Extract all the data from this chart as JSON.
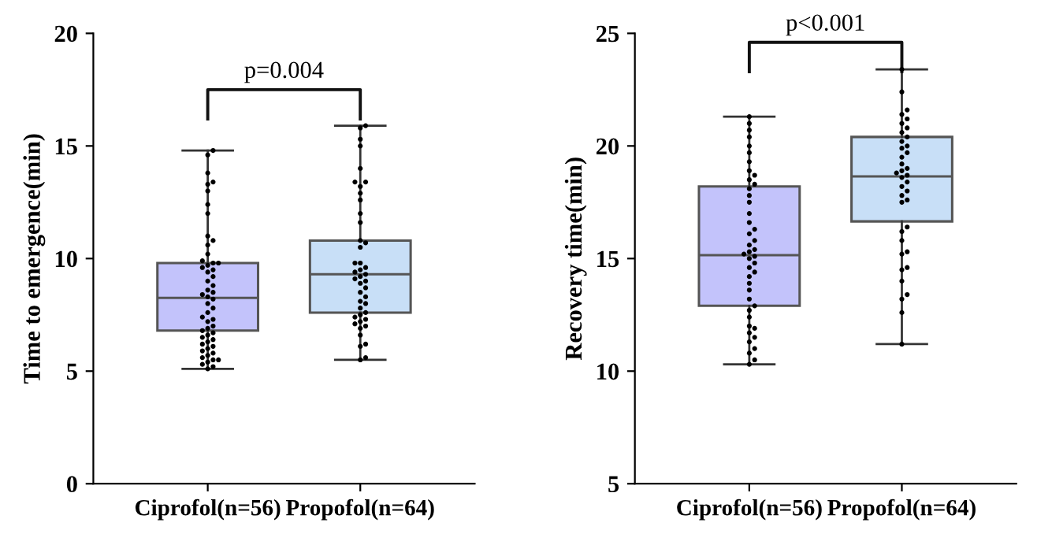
{
  "chart_data": [
    {
      "type": "box",
      "ylabel": "Time to emergence(min)",
      "categories": [
        "Ciprofol(n=56)",
        "Propofol(n=64)"
      ],
      "colors": [
        "#c3c3fb",
        "#c8dff7"
      ],
      "ylim": [
        0,
        20
      ],
      "yticks": [
        0,
        5,
        10,
        15,
        20
      ],
      "grid": false,
      "annotations": [
        "p=0.004"
      ],
      "boxes": [
        {
          "low": 5.1,
          "q1": 6.8,
          "median": 8.25,
          "q3": 9.8,
          "high": 14.8
        },
        {
          "low": 5.5,
          "q1": 7.6,
          "median": 9.3,
          "q3": 10.8,
          "high": 15.9
        }
      ],
      "series": [
        {
          "type": "scatter",
          "color": "#000000",
          "marker": "circle",
          "x": [
            "Ciprofol(n=56)",
            "Ciprofol(n=56)",
            "Ciprofol(n=56)",
            "Ciprofol(n=56)",
            "Ciprofol(n=56)",
            "Ciprofol(n=56)",
            "Ciprofol(n=56)",
            "Ciprofol(n=56)",
            "Ciprofol(n=56)",
            "Ciprofol(n=56)",
            "Ciprofol(n=56)",
            "Ciprofol(n=56)",
            "Ciprofol(n=56)",
            "Ciprofol(n=56)",
            "Ciprofol(n=56)",
            "Ciprofol(n=56)",
            "Ciprofol(n=56)",
            "Ciprofol(n=56)",
            "Ciprofol(n=56)",
            "Ciprofol(n=56)",
            "Ciprofol(n=56)",
            "Ciprofol(n=56)",
            "Ciprofol(n=56)",
            "Ciprofol(n=56)",
            "Ciprofol(n=56)",
            "Ciprofol(n=56)",
            "Ciprofol(n=56)",
            "Ciprofol(n=56)",
            "Ciprofol(n=56)",
            "Ciprofol(n=56)",
            "Ciprofol(n=56)",
            "Ciprofol(n=56)",
            "Ciprofol(n=56)",
            "Ciprofol(n=56)",
            "Ciprofol(n=56)",
            "Ciprofol(n=56)",
            "Ciprofol(n=56)",
            "Ciprofol(n=56)",
            "Ciprofol(n=56)",
            "Ciprofol(n=56)",
            "Ciprofol(n=56)",
            "Ciprofol(n=56)",
            "Ciprofol(n=56)",
            "Ciprofol(n=56)",
            "Ciprofol(n=56)",
            "Ciprofol(n=56)",
            "Ciprofol(n=56)",
            "Ciprofol(n=56)",
            "Ciprofol(n=56)",
            "Ciprofol(n=56)",
            "Ciprofol(n=56)",
            "Ciprofol(n=56)",
            "Ciprofol(n=56)",
            "Ciprofol(n=56)"
          ],
          "values": [
            5.1,
            5.2,
            5.3,
            5.4,
            5.5,
            5.5,
            5.6,
            5.7,
            5.8,
            5.9,
            6.0,
            6.1,
            6.2,
            6.3,
            6.4,
            6.5,
            6.6,
            6.7,
            6.8,
            6.9,
            7.0,
            7.2,
            7.3,
            7.4,
            7.6,
            7.8,
            8.0,
            8.2,
            8.3,
            8.4,
            8.5,
            8.6,
            8.8,
            9.0,
            9.2,
            9.4,
            9.5,
            9.6,
            9.7,
            9.8,
            9.8,
            9.9,
            10.2,
            10.6,
            10.8,
            11.0,
            12.0,
            12.4,
            13.0,
            13.3,
            13.4,
            13.8,
            14.6,
            14.8
          ]
        },
        {
          "type": "scatter",
          "color": "#000000",
          "marker": "circle",
          "x": [
            "Propofol(n=64)",
            "Propofol(n=64)",
            "Propofol(n=64)",
            "Propofol(n=64)",
            "Propofol(n=64)",
            "Propofol(n=64)",
            "Propofol(n=64)",
            "Propofol(n=64)",
            "Propofol(n=64)",
            "Propofol(n=64)",
            "Propofol(n=64)",
            "Propofol(n=64)",
            "Propofol(n=64)",
            "Propofol(n=64)",
            "Propofol(n=64)",
            "Propofol(n=64)",
            "Propofol(n=64)",
            "Propofol(n=64)",
            "Propofol(n=64)",
            "Propofol(n=64)",
            "Propofol(n=64)",
            "Propofol(n=64)",
            "Propofol(n=64)",
            "Propofol(n=64)",
            "Propofol(n=64)",
            "Propofol(n=64)",
            "Propofol(n=64)",
            "Propofol(n=64)",
            "Propofol(n=64)",
            "Propofol(n=64)",
            "Propofol(n=64)",
            "Propofol(n=64)",
            "Propofol(n=64)",
            "Propofol(n=64)",
            "Propofol(n=64)",
            "Propofol(n=64)",
            "Propofol(n=64)",
            "Propofol(n=64)",
            "Propofol(n=64)",
            "Propofol(n=64)",
            "Propofol(n=64)",
            "Propofol(n=64)",
            "Propofol(n=64)",
            "Propofol(n=64)"
          ],
          "values": [
            5.5,
            5.6,
            6.1,
            6.2,
            6.6,
            6.9,
            7.0,
            7.1,
            7.2,
            7.3,
            7.4,
            7.5,
            7.6,
            7.8,
            8.0,
            8.1,
            8.3,
            8.5,
            8.7,
            8.9,
            9.0,
            9.1,
            9.2,
            9.3,
            9.4,
            9.5,
            9.6,
            9.8,
            9.8,
            10.5,
            10.7,
            10.8,
            11.6,
            12.0,
            12.6,
            12.9,
            13.2,
            13.4,
            13.4,
            14.0,
            15.0,
            15.3,
            15.8,
            15.9
          ]
        }
      ]
    },
    {
      "type": "box",
      "ylabel": "Recovery time(min)",
      "categories": [
        "Ciprofol(n=56)",
        "Propofol(n=64)"
      ],
      "colors": [
        "#c3c3fb",
        "#c8dff7"
      ],
      "ylim": [
        5,
        25
      ],
      "yticks": [
        5,
        10,
        15,
        20,
        25
      ],
      "grid": false,
      "annotations": [
        "p<0.001"
      ],
      "boxes": [
        {
          "low": 10.3,
          "q1": 12.9,
          "median": 15.15,
          "q3": 18.2,
          "high": 21.3
        },
        {
          "low": 11.2,
          "q1": 16.65,
          "median": 18.65,
          "q3": 20.4,
          "high": 23.4
        }
      ],
      "series": [
        {
          "type": "scatter",
          "color": "#000000",
          "marker": "circle",
          "x": [
            "Ciprofol(n=56)",
            "Ciprofol(n=56)",
            "Ciprofol(n=56)",
            "Ciprofol(n=56)",
            "Ciprofol(n=56)",
            "Ciprofol(n=56)",
            "Ciprofol(n=56)",
            "Ciprofol(n=56)",
            "Ciprofol(n=56)",
            "Ciprofol(n=56)",
            "Ciprofol(n=56)",
            "Ciprofol(n=56)",
            "Ciprofol(n=56)",
            "Ciprofol(n=56)",
            "Ciprofol(n=56)",
            "Ciprofol(n=56)",
            "Ciprofol(n=56)",
            "Ciprofol(n=56)",
            "Ciprofol(n=56)",
            "Ciprofol(n=56)",
            "Ciprofol(n=56)",
            "Ciprofol(n=56)",
            "Ciprofol(n=56)",
            "Ciprofol(n=56)",
            "Ciprofol(n=56)",
            "Ciprofol(n=56)",
            "Ciprofol(n=56)",
            "Ciprofol(n=56)",
            "Ciprofol(n=56)",
            "Ciprofol(n=56)",
            "Ciprofol(n=56)",
            "Ciprofol(n=56)",
            "Ciprofol(n=56)",
            "Ciprofol(n=56)",
            "Ciprofol(n=56)",
            "Ciprofol(n=56)",
            "Ciprofol(n=56)",
            "Ciprofol(n=56)",
            "Ciprofol(n=56)",
            "Ciprofol(n=56)",
            "Ciprofol(n=56)",
            "Ciprofol(n=56)",
            "Ciprofol(n=56)",
            "Ciprofol(n=56)"
          ],
          "values": [
            10.3,
            10.5,
            10.8,
            11.0,
            11.3,
            11.5,
            11.7,
            11.9,
            12.0,
            12.4,
            12.7,
            12.9,
            13.2,
            13.6,
            13.9,
            14.2,
            14.4,
            14.6,
            14.8,
            15.0,
            15.1,
            15.2,
            15.3,
            15.4,
            15.6,
            15.8,
            16.1,
            16.3,
            16.6,
            17.0,
            17.5,
            17.8,
            18.1,
            18.3,
            18.5,
            18.7,
            18.9,
            19.3,
            19.7,
            20.0,
            20.4,
            20.7,
            21.0,
            21.3
          ]
        },
        {
          "type": "scatter",
          "color": "#000000",
          "marker": "circle",
          "x": [
            "Propofol(n=64)",
            "Propofol(n=64)",
            "Propofol(n=64)",
            "Propofol(n=64)",
            "Propofol(n=64)",
            "Propofol(n=64)",
            "Propofol(n=64)",
            "Propofol(n=64)",
            "Propofol(n=64)",
            "Propofol(n=64)",
            "Propofol(n=64)",
            "Propofol(n=64)",
            "Propofol(n=64)",
            "Propofol(n=64)",
            "Propofol(n=64)",
            "Propofol(n=64)",
            "Propofol(n=64)",
            "Propofol(n=64)",
            "Propofol(n=64)",
            "Propofol(n=64)",
            "Propofol(n=64)",
            "Propofol(n=64)",
            "Propofol(n=64)",
            "Propofol(n=64)",
            "Propofol(n=64)",
            "Propofol(n=64)",
            "Propofol(n=64)",
            "Propofol(n=64)",
            "Propofol(n=64)",
            "Propofol(n=64)",
            "Propofol(n=64)",
            "Propofol(n=64)",
            "Propofol(n=64)",
            "Propofol(n=64)",
            "Propofol(n=64)",
            "Propofol(n=64)",
            "Propofol(n=64)",
            "Propofol(n=64)"
          ],
          "values": [
            11.2,
            12.6,
            13.2,
            13.4,
            14.0,
            14.5,
            14.6,
            15.2,
            15.3,
            15.8,
            16.2,
            16.4,
            17.5,
            17.6,
            17.8,
            18.0,
            18.2,
            18.4,
            18.6,
            18.7,
            18.8,
            18.9,
            19.0,
            19.2,
            19.5,
            19.7,
            19.9,
            20.0,
            20.2,
            20.4,
            20.6,
            20.8,
            21.0,
            21.2,
            21.4,
            21.6,
            22.4,
            23.4
          ]
        }
      ]
    }
  ]
}
